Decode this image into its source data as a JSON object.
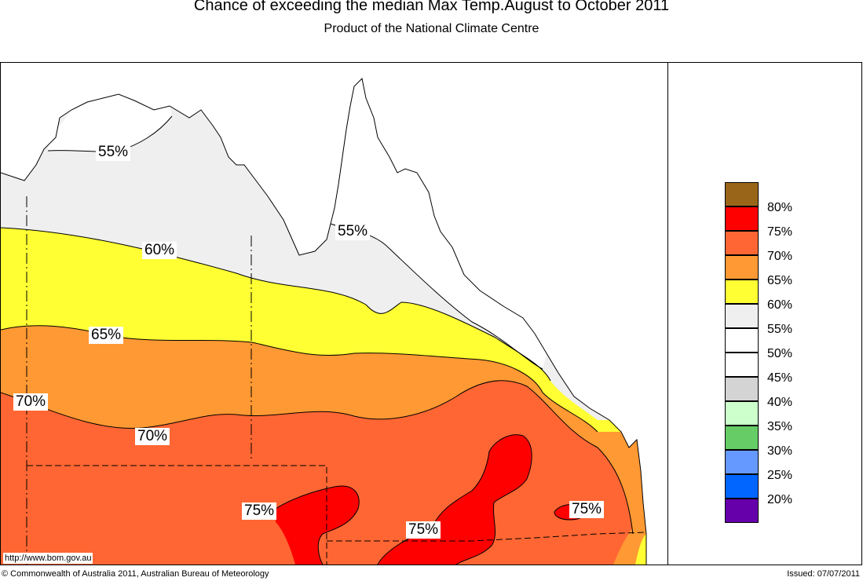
{
  "header": {
    "title": "Chance of exceeding the median Max Temp.August to October 2011",
    "subtitle": "Product of the National Climate Centre"
  },
  "map": {
    "url": "http://www.bom.gov.au",
    "contour_labels": {
      "north_55": "55%",
      "east_55": "55%",
      "c60": "60%",
      "c65": "65%",
      "w70": "70%",
      "c70": "70%",
      "a75": "75%",
      "b75": "75%",
      "c75": "75%"
    },
    "zone_colors": {
      "z55": "#efefef",
      "z60": "#ffff33",
      "z65": "#ff9933",
      "z70": "#ff6633",
      "z75": "#ff0000"
    }
  },
  "legend": {
    "items": [
      {
        "label": "80%",
        "color": "#996619"
      },
      {
        "label": "75%",
        "color": "#ff0000"
      },
      {
        "label": "70%",
        "color": "#ff6633"
      },
      {
        "label": "65%",
        "color": "#ff9933"
      },
      {
        "label": "60%",
        "color": "#ffff33"
      },
      {
        "label": "55%",
        "color": "#efefef"
      },
      {
        "label": "50%",
        "color": "#ffffff"
      },
      {
        "label": "45%",
        "color": "#ffffff"
      },
      {
        "label": "40%",
        "color": "#d4d4d4"
      },
      {
        "label": "35%",
        "color": "#ccffcc"
      },
      {
        "label": "30%",
        "color": "#66cc66"
      },
      {
        "label": "25%",
        "color": "#6699ff"
      },
      {
        "label": "20%",
        "color": "#0066ff"
      },
      {
        "label": "",
        "color": "#6600aa"
      }
    ]
  },
  "footer": {
    "copyright": "© Commonwealth of Australia 2011, Australian Bureau of Meteorology",
    "issued": "Issued: 07/07/2011"
  }
}
